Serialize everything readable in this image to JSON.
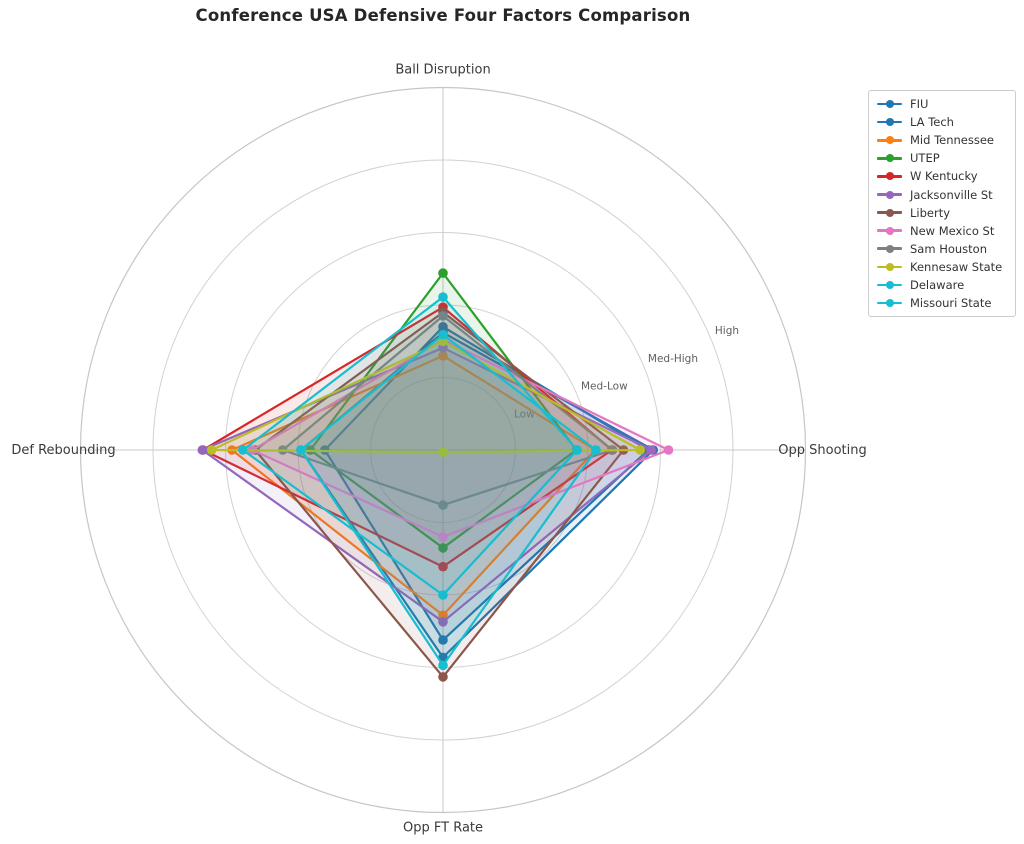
{
  "title": "Conference USA Defensive Four Factors Comparison",
  "chart_data": {
    "type": "radar",
    "axes": [
      "Ball Disruption",
      "Opp Shooting",
      "Opp FT Rate",
      "Def Rebounding"
    ],
    "scale": {
      "min": 0,
      "max": 5,
      "ticks": [
        1,
        2,
        3,
        4
      ],
      "tick_labels": [
        "Low",
        "Med-Low",
        "Med-High",
        "High"
      ]
    },
    "grid": true,
    "legend_position": "upper right",
    "series": [
      {
        "name": "FIU",
        "color": "#1f77b4",
        "values": [
          1.7,
          2.83,
          2.62,
          1.63
        ]
      },
      {
        "name": "LA Tech",
        "color": "#1f77b4",
        "values": [
          1.62,
          2.9,
          2.86,
          1.96
        ]
      },
      {
        "name": "Mid Tennessee",
        "color": "#ff7f0e",
        "values": [
          1.3,
          2.1,
          2.28,
          2.91
        ]
      },
      {
        "name": "UTEP",
        "color": "#2ca02c",
        "values": [
          2.44,
          1.84,
          1.35,
          1.83
        ]
      },
      {
        "name": "W Kentucky",
        "color": "#d62728",
        "values": [
          1.97,
          2.33,
          1.61,
          3.31
        ]
      },
      {
        "name": "Jacksonville St",
        "color": "#9467bd",
        "values": [
          1.41,
          2.87,
          2.37,
          3.32
        ]
      },
      {
        "name": "Liberty",
        "color": "#8c564b",
        "values": [
          1.9,
          2.49,
          3.13,
          2.59
        ]
      },
      {
        "name": "New Mexico St",
        "color": "#e377c2",
        "values": [
          1.52,
          3.11,
          1.2,
          2.63
        ]
      },
      {
        "name": "Sam Houston",
        "color": "#7f7f7f",
        "values": [
          1.85,
          2.34,
          0.76,
          2.21
        ]
      },
      {
        "name": "Kennesaw State",
        "color": "#bcbd22",
        "values": [
          1.5,
          2.72,
          0.03,
          3.19
        ]
      },
      {
        "name": "Delaware",
        "color": "#17becf",
        "values": [
          2.11,
          1.85,
          2.0,
          2.76
        ]
      },
      {
        "name": "Missouri State",
        "color": "#17becf",
        "values": [
          1.59,
          2.11,
          2.97,
          1.96
        ]
      }
    ]
  }
}
